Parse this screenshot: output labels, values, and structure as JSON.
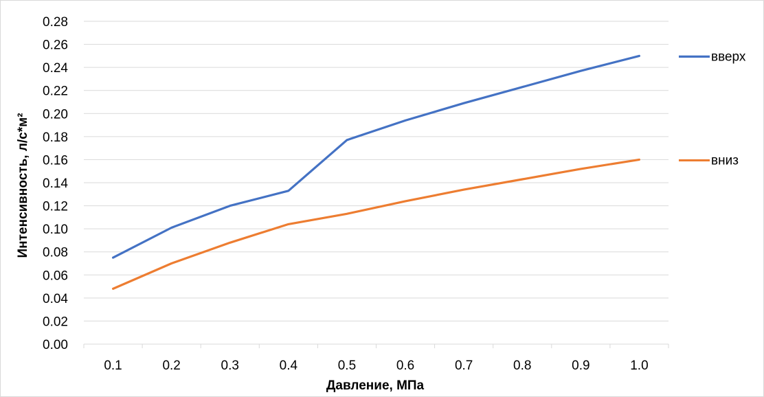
{
  "chart_data": {
    "type": "line",
    "title": "",
    "xlabel": "Давление, МПа",
    "ylabel": "Интенсивность, л/с*м²",
    "categories": [
      "0.1",
      "0.2",
      "0.3",
      "0.4",
      "0.5",
      "0.6",
      "0.7",
      "0.8",
      "0.9",
      "1.0"
    ],
    "yticks": [
      "0.00",
      "0.02",
      "0.04",
      "0.06",
      "0.08",
      "0.10",
      "0.12",
      "0.14",
      "0.16",
      "0.18",
      "0.20",
      "0.22",
      "0.24",
      "0.26",
      "0.28"
    ],
    "ylim": [
      0,
      0.28
    ],
    "grid": true,
    "legend_position": "right",
    "series": [
      {
        "name": "вверх",
        "color": "#4472c4",
        "values": [
          0.075,
          0.101,
          0.12,
          0.133,
          0.177,
          0.194,
          0.209,
          0.223,
          0.237,
          0.25
        ]
      },
      {
        "name": "вниз",
        "color": "#ed7d31",
        "values": [
          0.048,
          0.07,
          0.088,
          0.104,
          0.113,
          0.124,
          0.134,
          0.143,
          0.152,
          0.16
        ]
      }
    ]
  }
}
